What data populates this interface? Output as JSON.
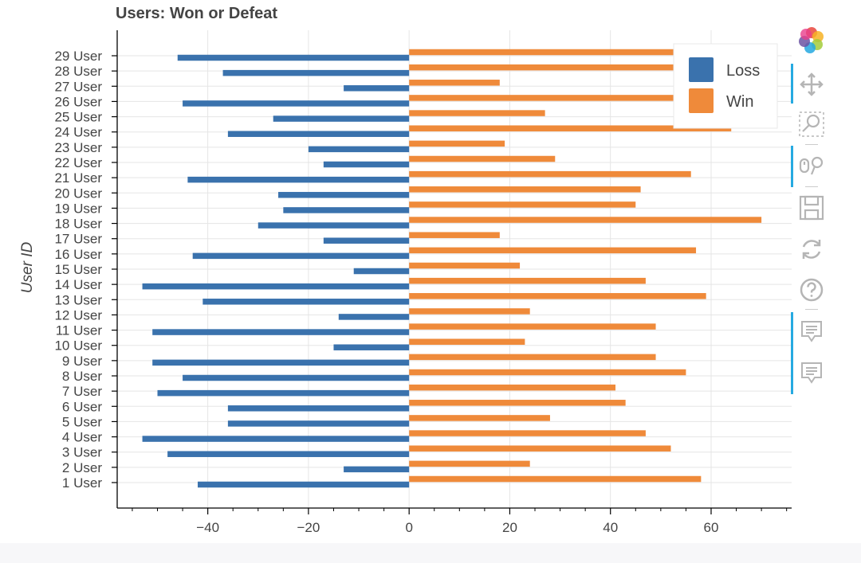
{
  "chart_data": {
    "type": "bar",
    "orientation": "horizontal",
    "title": "Users: Won or Defeat",
    "ylabel": "User ID",
    "xlabel": "",
    "xlim": [
      -58,
      76
    ],
    "x_ticks": [
      -40,
      -20,
      0,
      20,
      40,
      60
    ],
    "x_tick_labels": [
      "−40",
      "−20",
      "0",
      "20",
      "40",
      "60"
    ],
    "grid": true,
    "legend_position": "top-right",
    "categories": [
      "1 User",
      "2 User",
      "3 User",
      "4 User",
      "5 User",
      "6 User",
      "7 User",
      "8 User",
      "9 User",
      "10 User",
      "11 User",
      "12 User",
      "13 User",
      "14 User",
      "15 User",
      "16 User",
      "17 User",
      "18 User",
      "19 User",
      "20 User",
      "21 User",
      "22 User",
      "23 User",
      "24 User",
      "25 User",
      "26 User",
      "27 User",
      "28 User",
      "29 User"
    ],
    "series": [
      {
        "name": "Loss",
        "color": "#3a72ad",
        "values": [
          -42,
          -13,
          -48,
          -53,
          -36,
          -36,
          -50,
          -45,
          -51,
          -15,
          -51,
          -14,
          -41,
          -53,
          -11,
          -43,
          -17,
          -30,
          -25,
          -26,
          -44,
          -17,
          -20,
          -36,
          -27,
          -45,
          -13,
          -37,
          -46
        ]
      },
      {
        "name": "Win",
        "color": "#ef8a3a",
        "values": [
          58,
          24,
          52,
          47,
          28,
          43,
          41,
          55,
          49,
          23,
          49,
          24,
          59,
          47,
          22,
          57,
          18,
          70,
          45,
          46,
          56,
          29,
          19,
          64,
          27,
          58,
          18,
          63,
          60
        ]
      }
    ]
  },
  "toolbar": {
    "logo": "bokeh-logo-icon",
    "tools": [
      {
        "icon": "pan-icon",
        "active": true
      },
      {
        "icon": "box-zoom-icon",
        "active": false
      },
      {
        "icon": "wheel-zoom-icon",
        "active": true
      },
      {
        "icon": "save-icon",
        "active": false
      },
      {
        "icon": "reset-icon",
        "active": false
      },
      {
        "icon": "help-icon",
        "active": false
      },
      {
        "icon": "hover-icon",
        "active": true
      },
      {
        "icon": "hover-icon",
        "active": true
      }
    ]
  }
}
